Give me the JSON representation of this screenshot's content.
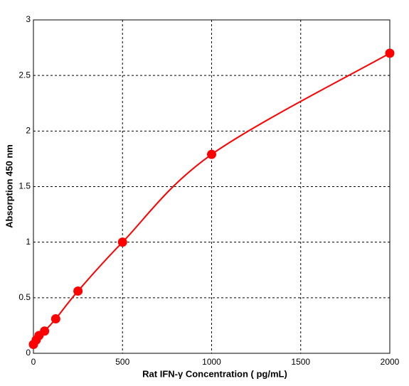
{
  "chart_data": {
    "type": "line",
    "x_label": "Rat IFN-γ Concentration ( pg/mL)",
    "y_label": "Absorption 450 nm",
    "x": [
      0,
      15.6,
      31.25,
      62.5,
      125,
      250,
      500,
      1000,
      2000
    ],
    "series": [
      {
        "color": "#ff0000",
        "values": [
          0.08,
          0.12,
          0.16,
          0.2,
          0.31,
          0.56,
          1.0,
          1.79,
          2.7
        ]
      }
    ],
    "xlim": [
      0,
      2000
    ],
    "ylim": [
      0,
      3
    ],
    "xticks": [
      0,
      500,
      1000,
      1500,
      2000
    ],
    "yticks": [
      0,
      0.5,
      1,
      1.5,
      2,
      2.5,
      3
    ],
    "grid": true
  }
}
